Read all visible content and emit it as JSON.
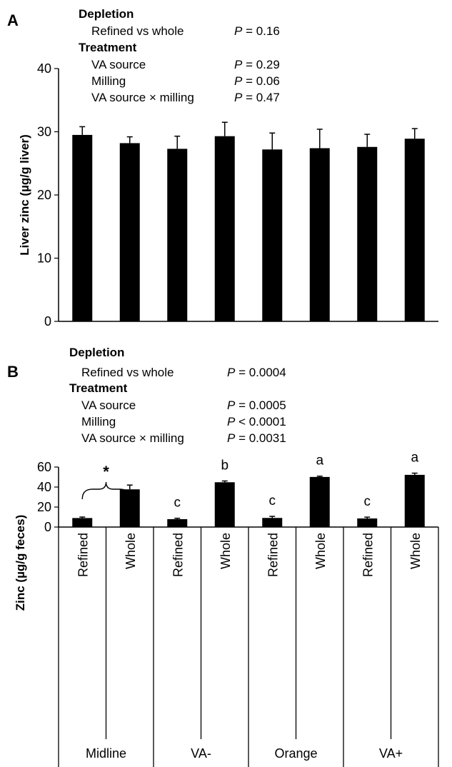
{
  "chart_data": [
    {
      "type": "bar",
      "panel_label": "A",
      "ylabel": "Liver zinc (µg/g liver)",
      "ylim": [
        0,
        40
      ],
      "yticks": [
        0,
        10,
        20,
        30,
        40
      ],
      "values": [
        29.5,
        28.2,
        27.3,
        29.3,
        27.2,
        27.4,
        27.6,
        28.9
      ],
      "errors": [
        1.3,
        1.0,
        2.0,
        2.2,
        2.6,
        3.0,
        2.0,
        1.6
      ],
      "bar_color": "#000000",
      "stats": {
        "depletion_heading": "Depletion",
        "depletion_rows": [
          {
            "label": "Refined vs whole",
            "p": "P",
            "value": " = 0.16"
          }
        ],
        "treatment_heading": "Treatment",
        "treatment_rows": [
          {
            "label": "VA source",
            "p": "P",
            "value": " = 0.29"
          },
          {
            "label": "Milling",
            "p": "P",
            "value": " = 0.06"
          },
          {
            "label": "VA source × milling",
            "p": "P",
            "value": " = 0.47"
          }
        ]
      }
    },
    {
      "type": "bar",
      "panel_label": "B",
      "ylabel": "Zinc (µg/g feces)",
      "ylim": [
        0,
        60
      ],
      "yticks": [
        0,
        20,
        40,
        60
      ],
      "categories": [
        "Refined",
        "Whole",
        "Refined",
        "Whole",
        "Refined",
        "Whole",
        "Refined",
        "Whole"
      ],
      "groups": [
        "Midline",
        "VA-",
        "Orange",
        "VA+"
      ],
      "values": [
        9.0,
        37.7,
        7.9,
        44.8,
        9.1,
        50.1,
        8.6,
        52.2
      ],
      "errors": [
        1.0,
        4.3,
        0.9,
        1.3,
        1.6,
        0.8,
        1.3,
        1.7
      ],
      "significance_letters": [
        "",
        "",
        "c",
        "b",
        "c",
        "a",
        "c",
        "a"
      ],
      "bracket_marker": "*",
      "bar_color": "#000000",
      "stats": {
        "depletion_heading": "Depletion",
        "depletion_rows": [
          {
            "label": "Refined vs whole",
            "p": "P",
            "value": " = 0.0004"
          }
        ],
        "treatment_heading": "Treatment",
        "treatment_rows": [
          {
            "label": "VA source",
            "p": "P",
            "value": " = 0.0005"
          },
          {
            "label": "Milling",
            "p": "P",
            "value": " < 0.0001"
          },
          {
            "label": "VA source × milling",
            "p": "P",
            "value": " = 0.0031"
          }
        ]
      }
    }
  ]
}
